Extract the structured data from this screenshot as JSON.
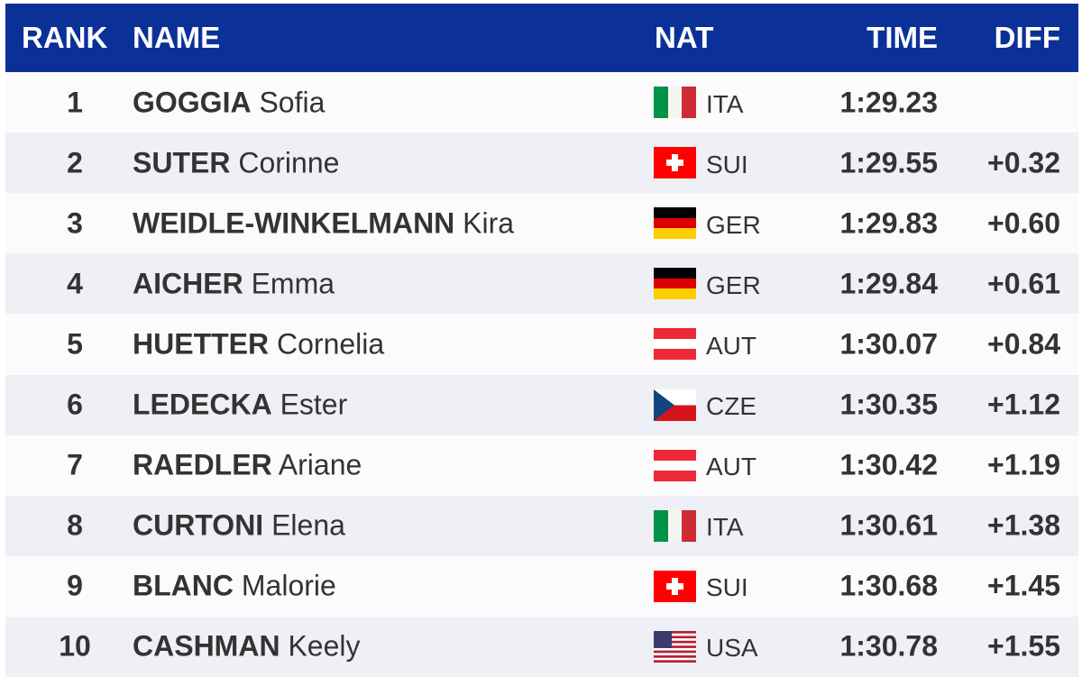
{
  "header": {
    "rank": "RANK",
    "name": "NAME",
    "nat": "NAT",
    "time": "TIME",
    "diff": "DIFF"
  },
  "rows": [
    {
      "rank": "1",
      "surname": "GOGGIA",
      "first_name": "Sofia",
      "nat": "ITA",
      "time": "1:29.23"
    },
    {
      "rank": "2",
      "surname": "SUTER",
      "first_name": "Corinne",
      "nat": "SUI",
      "time": "1:29.55",
      "diff": "+0.32"
    },
    {
      "rank": "3",
      "surname": "WEIDLE-WINKELMANN",
      "first_name": "Kira",
      "nat": "GER",
      "time": "1:29.83",
      "diff": "+0.60"
    },
    {
      "rank": "4",
      "surname": "AICHER",
      "first_name": "Emma",
      "nat": "GER",
      "time": "1:29.84",
      "diff": "+0.61"
    },
    {
      "rank": "5",
      "surname": "HUETTER",
      "first_name": "Cornelia",
      "nat": "AUT",
      "time": "1:30.07",
      "diff": "+0.84"
    },
    {
      "rank": "6",
      "surname": "LEDECKA",
      "first_name": "Ester",
      "nat": "CZE",
      "time": "1:30.35",
      "diff": "+1.12"
    },
    {
      "rank": "7",
      "surname": "RAEDLER",
      "first_name": "Ariane",
      "nat": "AUT",
      "time": "1:30.42",
      "diff": "+1.19"
    },
    {
      "rank": "8",
      "surname": "CURTONI",
      "first_name": "Elena",
      "nat": "ITA",
      "time": "1:30.61",
      "diff": "+1.38"
    },
    {
      "rank": "9",
      "surname": "BLANC",
      "first_name": "Malorie",
      "nat": "SUI",
      "time": "1:30.68",
      "diff": "+1.45"
    },
    {
      "rank": "10",
      "surname": "CASHMAN",
      "first_name": "Keely",
      "nat": "USA",
      "time": "1:30.78",
      "diff": "+1.55"
    }
  ]
}
